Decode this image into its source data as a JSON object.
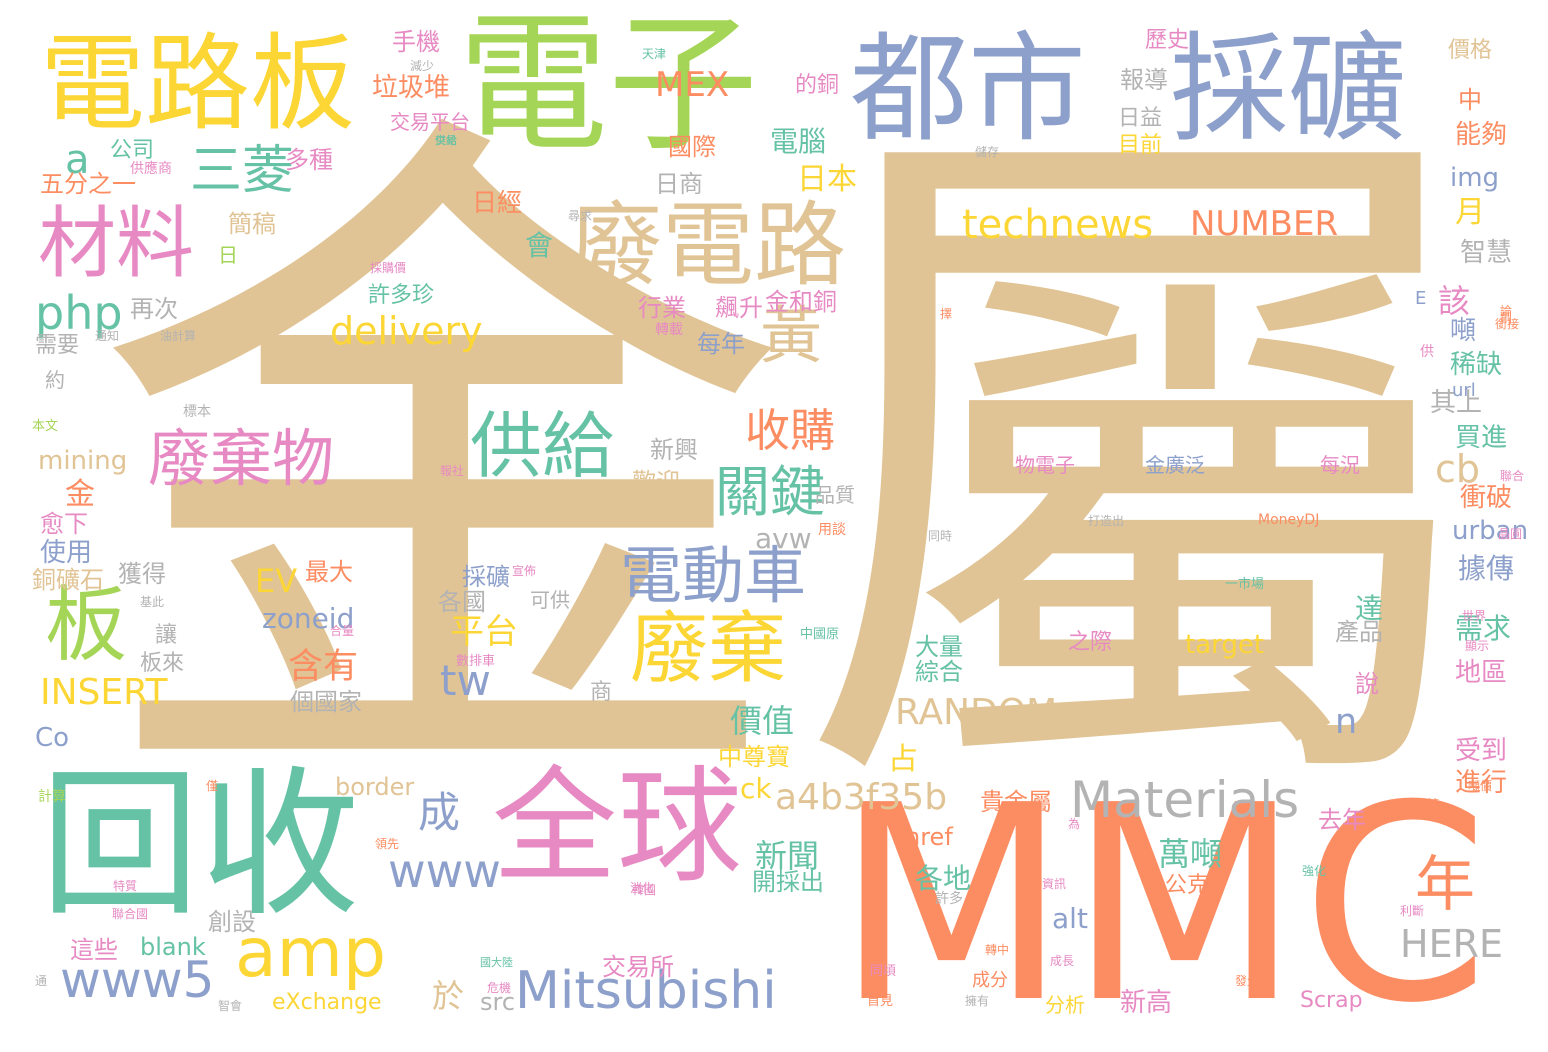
{
  "palette": {
    "tan": "#e1c495",
    "lime": "#a5d556",
    "blue": "#8da0cb",
    "yellow": "#fcd635",
    "teal": "#66c2a5",
    "orange": "#fc8d62",
    "pink": "#e78ac3",
    "grey": "#b3b3b3"
  },
  "words": {
    "w_jinshu": "金屬",
    "w_mmc": "MMC",
    "w_dianzi": "電子",
    "w_dushi": "都市",
    "w_caikuang": "採礦",
    "w_dianluban": "電路板",
    "w_huishou": "回收",
    "w_quanqiu": "全球",
    "w_feidianlu": "廢電路",
    "w_cailiao": "材料",
    "w_sanling": "三菱",
    "w_a": "a",
    "w_gongji": "供給",
    "w_feiqiwu": "廢棄物",
    "w_ban": "板",
    "w_feiqi": "廢棄",
    "w_diandongche": "電動車",
    "w_amp": "amp",
    "w_mitsubishi": "Mitsubishi",
    "w_www5": "www5",
    "w_www": "www",
    "w_materials": "Materials",
    "w_a4b3": "a4b3f35b",
    "w_huang": "黃",
    "w_shougou": "收購",
    "w_guanjian": "關鍵",
    "w_technews": "technews",
    "w_number": "NUMBER",
    "w_delivery": "delivery",
    "w_php": "php",
    "w_insert": "INSERT",
    "w_random": "RANDOM",
    "w_tw": "tw",
    "w_nian": "年",
    "w_here": "HERE",
    "w_cheng": "成",
    "w_cb": "cb",
    "w_n": "n",
    "w_mex": "MEX",
    "w_shouji": "手機",
    "w_lajidui": "垃圾堆",
    "w_gongsi": "公司",
    "w_duozhong": "多種",
    "w_wufen": "五分之一",
    "w_gongyingshang": "供應商",
    "w_jianggao": "簡稿",
    "w_ri": "日",
    "w_rijing": "日經",
    "w_riben": "日本",
    "w_diannao": "電腦",
    "w_guoji": "國際",
    "w_rishang": "日商",
    "w_hui": "會",
    "w_pingtai": "平台",
    "w_hanyou": "含有",
    "w_ev": "EV",
    "w_zuida": "最大",
    "w_zoneid": "zoneid",
    "w_mining": "mining",
    "w_jin": "金",
    "w_yuxia": "愈下",
    "w_shiyong": "使用",
    "w_tongkuangshi": "銅礦石",
    "w_huode": "獲得",
    "w_co": "Co",
    "w_border": "border",
    "w_ck": "ck",
    "w_jiazhi": "價值",
    "w_zhongzunbao": "中尊寶",
    "w_zhan": "占",
    "w_xinwen": "新聞",
    "w_kaicaichu": "開採出",
    "w_gedi": "各地",
    "w_href": "href",
    "w_guijinshu": "貴金屬",
    "w_wandun": "萬噸",
    "w_gongke": "公克",
    "w_alt": "alt",
    "w_blank": "blank",
    "w_zhexie": "這些",
    "w_chuangshe": "創設",
    "w_jiaoyisuo": "交易所",
    "w_yu": "於",
    "w_src": "src",
    "w_exchange": "eXchange",
    "w_xingao": "新高",
    "w_fenxi": "分析",
    "w_scrap": "Scrap",
    "w_chengfen": "成分",
    "w_qunian": "去年",
    "w_jinxing": "進行",
    "w_shoudao": "受到",
    "w_shuo": "說",
    "w_diqu": "地區",
    "w_xuqiu": "需求",
    "w_da": "達",
    "w_chanpin": "產品",
    "w_jujuan": "據傳",
    "w_urban": "urban",
    "w_chongpo": "衝破",
    "w_maijin": "買進",
    "w_qishang": "其上",
    "w_xique": "稀缺",
    "w_dun": "噸",
    "w_gai": "該",
    "w_zhihui": "智慧",
    "w_yue": "月",
    "w_img": "img",
    "w_nenggou": "能夠",
    "w_zhong": "中",
    "w_jiage": "價格",
    "w_lishi": "歷史",
    "w_baodao": "報導",
    "w_riyi": "日益",
    "w_muqian": "目前",
    "w_jiaoyipingtai": "交易平台",
    "w_dedetong": "的銅",
    "w_xuduozhen": "許多珍",
    "w_hangye": "行業",
    "w_piaosheng": "飆升",
    "w_jinhetong": "金和銅",
    "w_meinian": "每年",
    "w_xinxing": "新興",
    "w_huanying": "歡迎",
    "w_pinzhi": "品質",
    "w_avw": "avw",
    "w_caikuang2": "採礦",
    "w_geguo": "各國",
    "w_kegong": "可供",
    "w_dalilang": "大量",
    "w_zonghe": "綜合",
    "w_target": "target",
    "w_zhiji": "之際",
    "w_wudianzi": "物電子",
    "w_jinguangfan": "金廣泛",
    "w_meikuang": "每況",
    "w_geguojia": "個國家",
    "w_banlai": "板來",
    "w_rang": "讓",
    "w_shang": "商",
    "w_zaici": "再次",
    "w_xuyao": "需要",
    "w_yue2": "約",
    "w_benwen": "本文",
    "w_biaoben": "標本",
    "w_moneydj": "MoneyDJ",
    "w_jisuan": "計算",
    "w_yishichang": "一市場",
    "w_zhongguoyuan": "中國原",
    "w_zhuanzai": "轉載",
    "w_shubeiche": "數排車",
    "w_yongqing": "用談",
    "w_tongshi": "同時",
    "w_dazaochu": "打造出",
    "w_shijie": "世界",
    "w_xianshi": "顯示",
    "w_tianjin": "天津",
    "w_jianshao": "減少",
    "w_gongshou": "供給",
    "w_xunqiu": "尋求",
    "w_caigou": "採購價",
    "w_youji": "油計算",
    "w_jisi": "基此",
    "w_lianhe": "聯合國",
    "w_tedi": "特質",
    "w_weiji": "危機",
    "w_guodaliang": "國大陸",
    "w_xuduo": "許多",
    "w_zhuanqu": "轉中",
    "w_chengzhang": "成長",
    "w_shoujian": "首見",
    "w_jingxing": "強化",
    "w_lidui": "利斷",
    "w_fangxiang": "同頃",
    "w_faxian": "發生",
    "w_xiaohua": "消化",
    "w_zhijing": "智會",
    "w_tongzhi": "通知",
    "w_chuanzai": "擁有",
    "w_ziliao": "資訊",
    "w_xingxiang": "宣佈",
    "w_dan": "僅",
    "w_jiaoyi2": "交易",
    "w_e": "E",
    "w_gong": "供",
    "w_url": "url",
    "w_tong": "通",
    "w_jianliang": "儲存",
    "w_duoshao": "領先",
    "w_lun": "論",
    "w_weilai": "為",
    "w_suo": "韓國",
    "w_bianjie": "報社",
    "w_chuangji": "創",
    "w_jie": "銜接",
    "w_zhuoma": "擇",
    "w_hezuo": "聯合",
    "w_shengchan": "提煉",
    "w_zhuo": "噸價",
    "w_sanxian": "合量",
    "w_xiaojie": "晶圓"
  }
}
